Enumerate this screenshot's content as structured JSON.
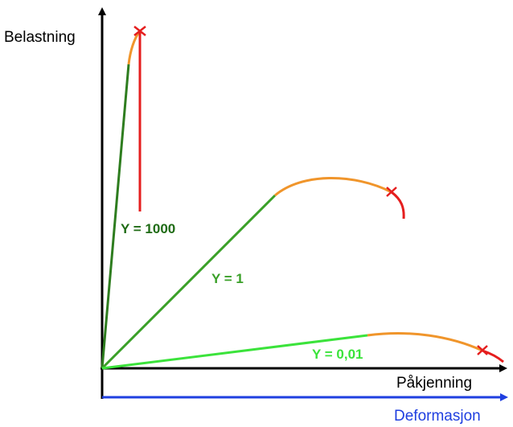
{
  "diagram": {
    "y_axis_label": "Belastning",
    "x_axis_label": "Påkjenning",
    "deformation_axis_label": "Deformasjon",
    "colors": {
      "axis": "#000000",
      "deformation_axis": "#1f3fe0",
      "dark_green": "#2e7d1f",
      "medium_green": "#3aa028",
      "light_green": "#3be33b",
      "orange": "#f0952b",
      "red": "#e51e1e",
      "fracture_mark": "#e51e1e"
    },
    "curves": [
      {
        "label": "Y = 1000",
        "label_color": "#1f6b15"
      },
      {
        "label": "Y = 1",
        "label_color": "#3aa028"
      },
      {
        "label": "Y = 0,01",
        "label_color": "#3be33b"
      }
    ]
  }
}
